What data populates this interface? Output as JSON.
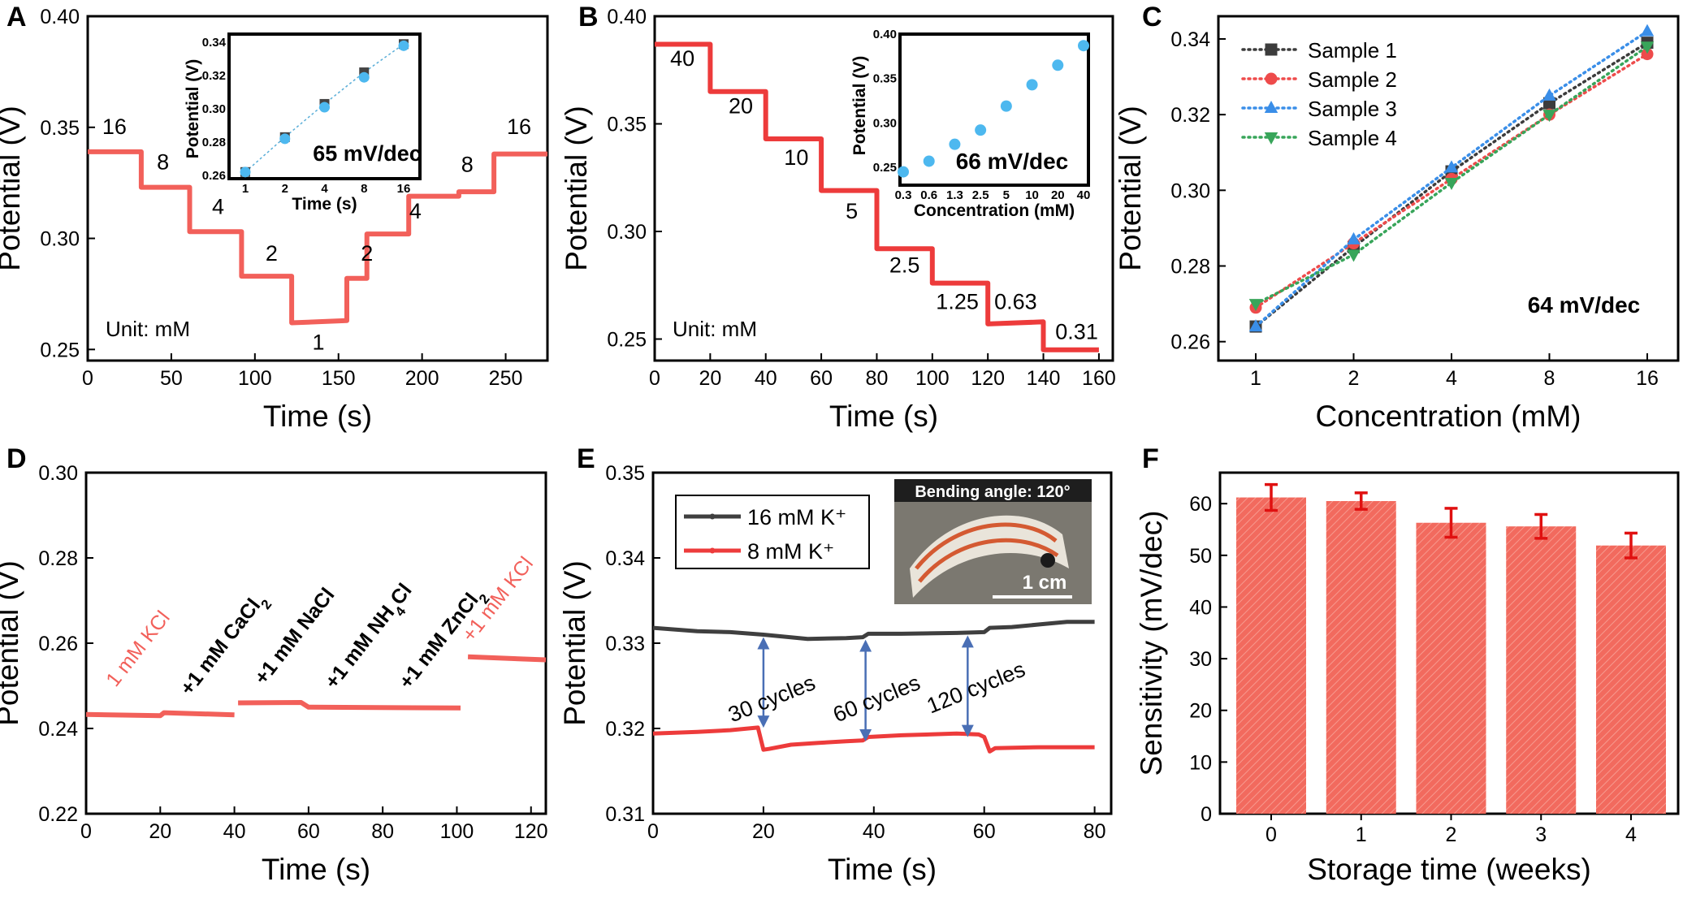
{
  "colors": {
    "red": "#ed3b3b",
    "red_light": "#f2605a",
    "dark": "#3f3f3f",
    "arrow": "#4a6fb5",
    "blue_dot": "#4db8ef",
    "bar": "#f26a5e"
  },
  "chart_data": [
    {
      "id": "A",
      "type": "line",
      "letter": "A",
      "xlabel": "Time (s)",
      "ylabel": "Potential (V)",
      "xlim": [
        0,
        275
      ],
      "ylim": [
        0.245,
        0.4
      ],
      "xticks": [
        0,
        50,
        100,
        150,
        200,
        250
      ],
      "yticks": [
        0.25,
        0.3,
        0.35,
        0.4
      ],
      "ytick_labels": [
        "0.25",
        "0.30",
        "0.35",
        "0.40"
      ],
      "series": [
        {
          "x": [
            0,
            32,
            32,
            61,
            61,
            92,
            92,
            122,
            122,
            155,
            155,
            167,
            167,
            192,
            192,
            222,
            222,
            243,
            243,
            275
          ],
          "y": [
            0.339,
            0.339,
            0.323,
            0.323,
            0.303,
            0.303,
            0.283,
            0.283,
            0.262,
            0.263,
            0.282,
            0.282,
            0.302,
            0.302,
            0.319,
            0.319,
            0.321,
            0.321,
            0.338,
            0.338
          ]
        }
      ],
      "step_labels": [
        {
          "text": "16",
          "x": 16,
          "y": 0.347
        },
        {
          "text": "8",
          "x": 45,
          "y": 0.331
        },
        {
          "text": "4",
          "x": 78,
          "y": 0.311
        },
        {
          "text": "2",
          "x": 110,
          "y": 0.29
        },
        {
          "text": "1",
          "x": 138,
          "y": 0.25
        },
        {
          "text": "2",
          "x": 167,
          "y": 0.29
        },
        {
          "text": "4",
          "x": 196,
          "y": 0.309
        },
        {
          "text": "8",
          "x": 227,
          "y": 0.33
        },
        {
          "text": "16",
          "x": 258,
          "y": 0.347
        }
      ],
      "annotation": "Unit: mM",
      "inset": {
        "xlabel": "Time (s)",
        "ylabel": "Potential (V)",
        "categories": [
          "1",
          "2",
          "4",
          "8",
          "16"
        ],
        "ylim": [
          0.258,
          0.345
        ],
        "yticks": [
          0.26,
          0.28,
          0.3,
          0.32,
          0.34
        ],
        "ytick_labels": [
          "0.26",
          "0.28",
          "0.30",
          "0.32",
          "0.34"
        ],
        "series": [
          {
            "marker": "square",
            "values": [
              0.262,
              0.283,
              0.303,
              0.322,
              0.339
            ]
          },
          {
            "marker": "circle",
            "values": [
              0.262,
              0.282,
              0.301,
              0.319,
              0.338
            ]
          }
        ],
        "slope_label": "65 mV/dec"
      }
    },
    {
      "id": "B",
      "type": "line",
      "letter": "B",
      "xlabel": "Time (s)",
      "ylabel": "Potential (V)",
      "xlim": [
        0,
        165
      ],
      "ylim": [
        0.24,
        0.4
      ],
      "xticks": [
        0,
        20,
        40,
        60,
        80,
        100,
        120,
        140,
        160
      ],
      "yticks": [
        0.25,
        0.3,
        0.35,
        0.4
      ],
      "ytick_labels": [
        "0.25",
        "0.30",
        "0.35",
        "0.40"
      ],
      "series": [
        {
          "x": [
            0,
            20,
            20,
            40,
            40,
            60,
            60,
            80,
            80,
            100,
            100,
            120,
            120,
            140,
            140,
            160
          ],
          "y": [
            0.387,
            0.387,
            0.365,
            0.365,
            0.343,
            0.343,
            0.319,
            0.319,
            0.292,
            0.292,
            0.276,
            0.276,
            0.257,
            0.258,
            0.245,
            0.245
          ]
        }
      ],
      "step_labels": [
        {
          "text": "40",
          "x": 10,
          "y": 0.377
        },
        {
          "text": "20",
          "x": 31,
          "y": 0.355
        },
        {
          "text": "10",
          "x": 51,
          "y": 0.331
        },
        {
          "text": "5",
          "x": 71,
          "y": 0.306
        },
        {
          "text": "2.5",
          "x": 90,
          "y": 0.281
        },
        {
          "text": "1.25",
          "x": 109,
          "y": 0.264
        },
        {
          "text": "0.63",
          "x": 130,
          "y": 0.264
        },
        {
          "text": "0.31",
          "x": 152,
          "y": 0.25
        }
      ],
      "annotation": "Unit: mM",
      "inset": {
        "xlabel": "Concentration (mM)",
        "ylabel": "Potential (V)",
        "categories": [
          "0.3",
          "0.6",
          "1.3",
          "2.5",
          "5",
          "10",
          "20",
          "40"
        ],
        "ylim": [
          0.23,
          0.4
        ],
        "yticks": [
          0.25,
          0.3,
          0.35,
          0.4
        ],
        "ytick_labels": [
          "0.25",
          "0.30",
          "0.35",
          "0.40"
        ],
        "series": [
          {
            "marker": "circle",
            "values": [
              0.245,
              0.257,
              0.276,
              0.292,
              0.319,
              0.343,
              0.365,
              0.387
            ]
          }
        ],
        "slope_label": "66 mV/dec"
      }
    },
    {
      "id": "C",
      "type": "scatter",
      "letter": "C",
      "xlabel": "Concentration (mM)",
      "ylabel": "Potential (V)",
      "categories": [
        "1",
        "2",
        "4",
        "8",
        "16"
      ],
      "ylim": [
        0.255,
        0.346
      ],
      "yticks": [
        0.26,
        0.28,
        0.3,
        0.32,
        0.34
      ],
      "ytick_labels": [
        "0.26",
        "0.28",
        "0.30",
        "0.32",
        "0.34"
      ],
      "series": [
        {
          "name": "Sample 1",
          "color": "#3c3c3c",
          "marker": "square",
          "values": [
            0.264,
            0.285,
            0.305,
            0.323,
            0.339
          ]
        },
        {
          "name": "Sample 2",
          "color": "#ee4b4b",
          "marker": "circle",
          "values": [
            0.269,
            0.286,
            0.303,
            0.32,
            0.336
          ]
        },
        {
          "name": "Sample 3",
          "color": "#3a8ee8",
          "marker": "triangle-up",
          "values": [
            0.264,
            0.287,
            0.306,
            0.325,
            0.342
          ]
        },
        {
          "name": "Sample 4",
          "color": "#38a55a",
          "marker": "triangle-down",
          "values": [
            0.27,
            0.283,
            0.302,
            0.32,
            0.338
          ]
        }
      ],
      "annotation": "64 mV/dec"
    },
    {
      "id": "D",
      "type": "line",
      "letter": "D",
      "xlabel": "Time (s)",
      "ylabel": "Potential (V)",
      "xlim": [
        0,
        124
      ],
      "ylim": [
        0.22,
        0.3
      ],
      "xticks": [
        0,
        20,
        40,
        60,
        80,
        100,
        120
      ],
      "yticks": [
        0.22,
        0.24,
        0.26,
        0.28,
        0.3
      ],
      "ytick_labels": [
        "0.22",
        "0.24",
        "0.26",
        "0.28",
        "0.30"
      ],
      "series": [
        {
          "x": [
            0,
            20,
            21,
            40
          ],
          "y": [
            0.2433,
            0.243,
            0.2437,
            0.2432
          ]
        },
        {
          "x": [
            41,
            58,
            60,
            101
          ],
          "y": [
            0.246,
            0.2461,
            0.245,
            0.2448
          ]
        },
        {
          "x": [
            103,
            124
          ],
          "y": [
            0.2568,
            0.2561
          ]
        }
      ],
      "annotations": [
        {
          "parts": [
            {
              "t": "1 mM KCl"
            }
          ],
          "x": 8,
          "y": 0.2495,
          "angle": -52,
          "color": "#f2605a",
          "bold": false
        },
        {
          "parts": [
            {
              "t": "+1 mM CaCl"
            },
            {
              "t": "2",
              "sub": true
            }
          ],
          "x": 28,
          "y": 0.2475,
          "angle": -52,
          "color": "#000000",
          "bold": true
        },
        {
          "parts": [
            {
              "t": "+1 mM NaCl"
            }
          ],
          "x": 48,
          "y": 0.25,
          "angle": -52,
          "color": "#000000",
          "bold": true
        },
        {
          "parts": [
            {
              "t": "+1 mM NH"
            },
            {
              "t": "4",
              "sub": true
            },
            {
              "t": "Cl"
            }
          ],
          "x": 67,
          "y": 0.249,
          "angle": -52,
          "color": "#000000",
          "bold": true
        },
        {
          "parts": [
            {
              "t": "+1 mM ZnCl"
            },
            {
              "t": "2",
              "sub": true
            }
          ],
          "x": 87,
          "y": 0.249,
          "angle": -52,
          "color": "#000000",
          "bold": true
        },
        {
          "parts": [
            {
              "t": "+1 mM KCl"
            }
          ],
          "x": 104,
          "y": 0.26,
          "angle": -52,
          "color": "#f2605a",
          "bold": false
        }
      ]
    },
    {
      "id": "E",
      "type": "line",
      "letter": "E",
      "xlabel": "Time (s)",
      "ylabel": "Potential (V)",
      "xlim": [
        0,
        83
      ],
      "ylim": [
        0.31,
        0.35
      ],
      "xticks": [
        0,
        20,
        40,
        60,
        80
      ],
      "yticks": [
        0.31,
        0.32,
        0.33,
        0.34,
        0.35
      ],
      "ytick_labels": [
        "0.31",
        "0.32",
        "0.33",
        "0.34",
        "0.35"
      ],
      "series": [
        {
          "name": "16 mM K⁺",
          "color": "#3f3f3f",
          "x": [
            0,
            8,
            14,
            20,
            28,
            35,
            38,
            39,
            45,
            55,
            60,
            61,
            65,
            70,
            75,
            80
          ],
          "y": [
            0.3318,
            0.3314,
            0.3313,
            0.331,
            0.3305,
            0.3306,
            0.3307,
            0.3311,
            0.3311,
            0.3312,
            0.3313,
            0.3318,
            0.3319,
            0.3322,
            0.3325,
            0.3325
          ]
        },
        {
          "name": "8  mM K⁺",
          "color": "#ed3b3b",
          "x": [
            0,
            8,
            14,
            19,
            20,
            21,
            25,
            30,
            35,
            38,
            39,
            45,
            55,
            59,
            60,
            61,
            62,
            70,
            80
          ],
          "y": [
            0.3194,
            0.3196,
            0.3198,
            0.3201,
            0.3175,
            0.3176,
            0.3181,
            0.3183,
            0.3185,
            0.3186,
            0.319,
            0.3192,
            0.3194,
            0.3193,
            0.319,
            0.3173,
            0.3177,
            0.3178,
            0.3178
          ]
        }
      ],
      "cycle_markers": [
        {
          "label": "30 cycles",
          "x": 20,
          "y_top": 0.33,
          "y_bottom": 0.3208,
          "label_y": 0.3227,
          "label_x": 22
        },
        {
          "label": "60 cycles",
          "x": 38.5,
          "y_top": 0.3297,
          "y_bottom": 0.3192,
          "label_y": 0.3227,
          "label_x": 41
        },
        {
          "label": "120 cycles",
          "x": 57,
          "y_top": 0.3302,
          "y_bottom": 0.3197,
          "label_y": 0.324,
          "label_x": 59
        }
      ],
      "photo_caption": "Bending angle: 120°",
      "scale_bar": "1 cm"
    },
    {
      "id": "F",
      "type": "bar",
      "letter": "F",
      "xlabel": "Storage time (weeks)",
      "ylabel": "Sensitivity (mV/dec)",
      "categories": [
        "0",
        "1",
        "2",
        "3",
        "4"
      ],
      "values": [
        61.2,
        60.5,
        56.3,
        55.6,
        51.9
      ],
      "errors": [
        2.5,
        1.6,
        2.8,
        2.3,
        2.4
      ],
      "ylim": [
        0,
        66
      ],
      "yticks": [
        0,
        10,
        20,
        30,
        40,
        50,
        60
      ],
      "ytick_labels": [
        "0",
        "10",
        "20",
        "30",
        "40",
        "50",
        "60"
      ]
    }
  ]
}
